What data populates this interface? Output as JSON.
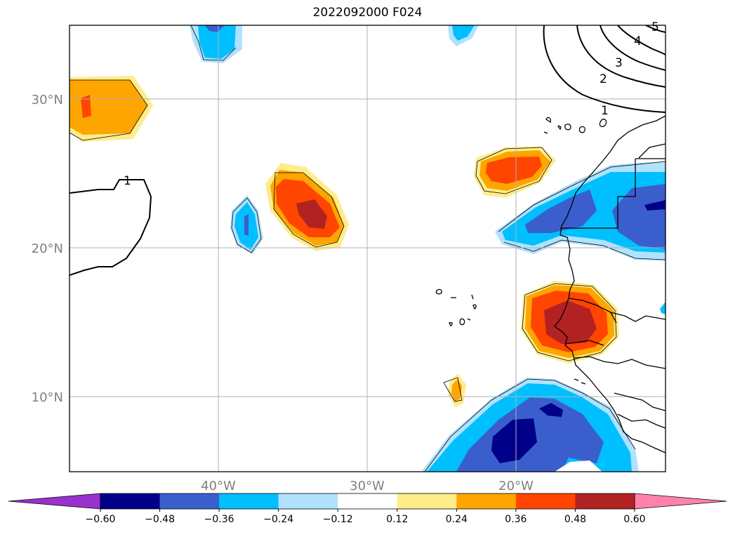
{
  "title": "2022092000 F024",
  "map": {
    "lon_range": [
      -50,
      -10
    ],
    "lat_range": [
      5,
      35
    ],
    "lat_ticks": [
      {
        "value": 30,
        "label": "30°N"
      },
      {
        "value": 20,
        "label": "20°N"
      },
      {
        "value": 10,
        "label": "10°N"
      }
    ],
    "lon_ticks": [
      {
        "value": -40,
        "label": "40°W"
      },
      {
        "value": -30,
        "label": "30°W"
      },
      {
        "value": -20,
        "label": "20°W"
      }
    ],
    "gridlines": true,
    "contour_labels": [
      "1",
      "1",
      "2",
      "3",
      "4",
      "5"
    ]
  },
  "colorbar": {
    "colors": [
      "#9932cc",
      "#00008b",
      "#3a5fcd",
      "#00bfff",
      "#b0e2ff",
      "#ffffff",
      "#ffec8b",
      "#ffa500",
      "#ff4500",
      "#b22222",
      "#ff82ab"
    ],
    "tick_labels": [
      "−0.60",
      "−0.48",
      "−0.36",
      "−0.24",
      "−0.12",
      "0.12",
      "0.24",
      "0.36",
      "0.48",
      "0.60"
    ],
    "extend": "both"
  }
}
